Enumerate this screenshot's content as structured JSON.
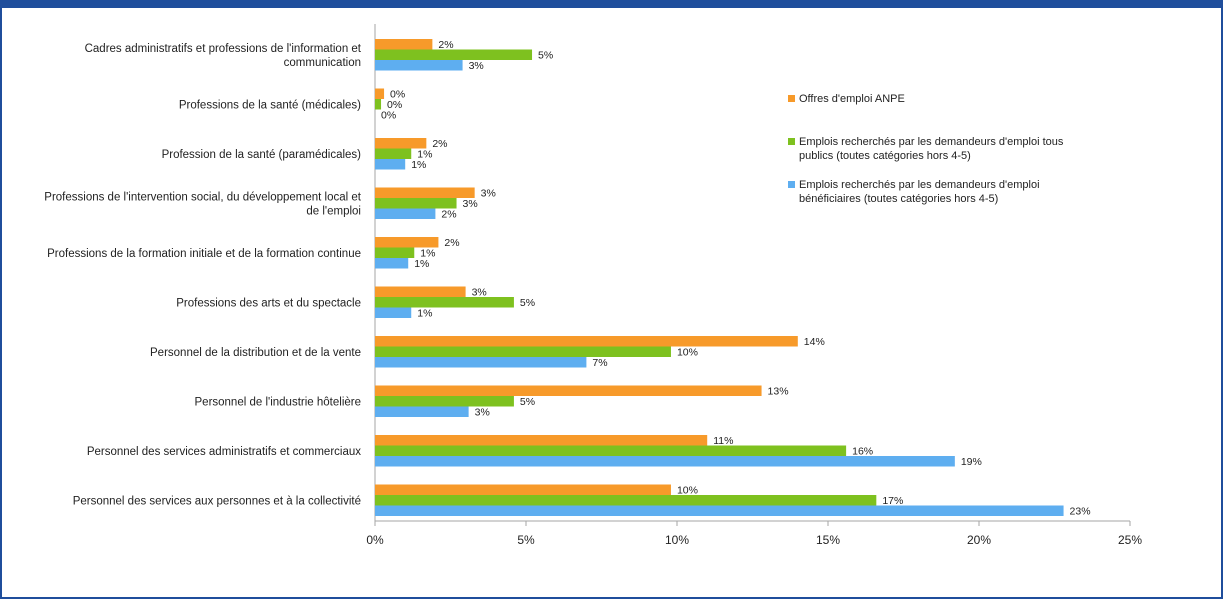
{
  "chart_data": {
    "type": "bar",
    "orientation": "horizontal",
    "categories": [
      "Cadres administratifs et professions de l'information et communication",
      "Professions de la santé (médicales)",
      "Profession de la santé (paramédicales)",
      "Professions de l'intervention social, du développement local et de l'emploi",
      "Professions de la formation initiale et de la formation continue",
      "Professions des arts et du spectacle",
      "Personnel de la distribution et de la vente",
      "Personnel de l'industrie hôtelière",
      "Personnel des services administratifs et commerciaux",
      "Personnel des services aux personnes et à la collectivité"
    ],
    "category_lines": [
      [
        "Cadres administratifs et professions de l'information et",
        "communication"
      ],
      [
        "Professions de la santé (médicales)"
      ],
      [
        "Profession de la santé (paramédicales)"
      ],
      [
        "Professions de l'intervention social, du développement local et",
        "de l'emploi"
      ],
      [
        "Professions de la formation initiale et de la formation continue"
      ],
      [
        "Professions des arts et du spectacle"
      ],
      [
        "Personnel de la distribution et de la vente"
      ],
      [
        "Personnel de l'industrie hôtelière"
      ],
      [
        "Personnel des services administratifs et commerciaux"
      ],
      [
        "Personnel des services aux personnes et à la collectivité"
      ]
    ],
    "series": [
      {
        "name": "Offres d'emploi ANPE",
        "legend_lines": [
          "Offres d'emploi ANPE"
        ],
        "color": "#f79a2a",
        "values": [
          1.9,
          0.3,
          1.7,
          3.3,
          2.1,
          3.0,
          14.0,
          12.8,
          11.0,
          9.8
        ],
        "labels": [
          "2%",
          "0%",
          "2%",
          "3%",
          "2%",
          "3%",
          "14%",
          "13%",
          "11%",
          "10%"
        ]
      },
      {
        "name": "Emplois recherchés par les demandeurs d'emploi tous publics (toutes catégories hors 4-5)",
        "legend_lines": [
          "Emplois recherchés par les demandeurs d'emploi tous",
          "publics (toutes catégories hors 4-5)"
        ],
        "color": "#7ec11f",
        "values": [
          5.2,
          0.2,
          1.2,
          2.7,
          1.3,
          4.6,
          9.8,
          4.6,
          15.6,
          16.6
        ],
        "labels": [
          "5%",
          "0%",
          "1%",
          "3%",
          "1%",
          "5%",
          "10%",
          "5%",
          "16%",
          "17%"
        ]
      },
      {
        "name": "Emplois recherchés par les demandeurs d'emploi bénéficiaires (toutes catégories hors 4-5)",
        "legend_lines": [
          "Emplois recherchés par les demandeurs d'emploi",
          "bénéficiaires (toutes catégories hors 4-5)"
        ],
        "color": "#5eaef0",
        "values": [
          2.9,
          0.0,
          1.0,
          2.0,
          1.1,
          1.2,
          7.0,
          3.1,
          19.2,
          22.8
        ],
        "labels": [
          "3%",
          "0%",
          "1%",
          "2%",
          "1%",
          "1%",
          "7%",
          "3%",
          "19%",
          "23%"
        ]
      }
    ],
    "xlim": [
      0,
      25
    ],
    "xticks": [
      "0%",
      "5%",
      "10%",
      "15%",
      "20%",
      "25%"
    ],
    "xlabel": "",
    "ylabel": "",
    "legend_position": "right",
    "grid": false
  },
  "colors": {
    "frame": "#1f4e9c",
    "axis": "#a6a6a6"
  }
}
